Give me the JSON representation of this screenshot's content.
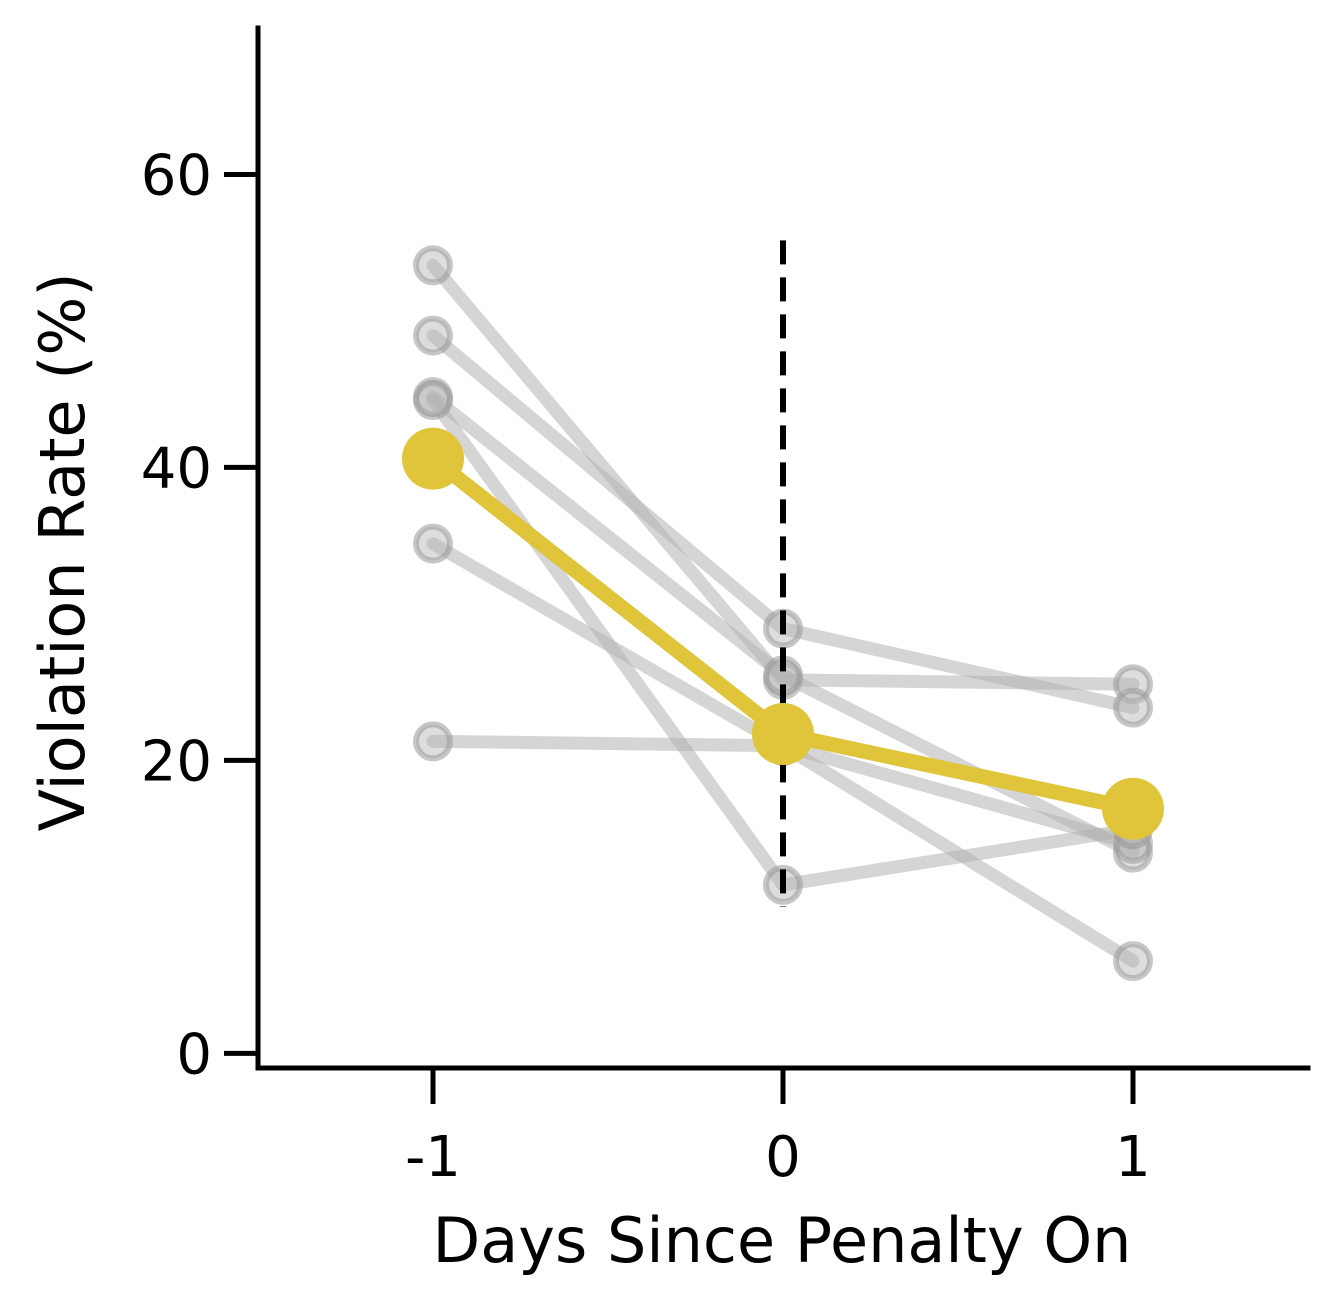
{
  "chart_data": {
    "type": "line",
    "title": "",
    "xlabel": "Days Since Penalty On",
    "ylabel": "Violation Rate (%)",
    "x": [
      -1,
      0,
      1
    ],
    "xlim": [
      -1.5,
      1.5
    ],
    "ylim": [
      -1,
      70
    ],
    "xticks": [
      -1,
      0,
      1
    ],
    "xtick_labels": [
      "-1",
      "0",
      "1"
    ],
    "yticks": [
      0,
      20,
      40,
      60
    ],
    "ytick_labels": [
      "0",
      "20",
      "40",
      "60"
    ],
    "grid": false,
    "legend": "none",
    "vline": {
      "x": 0,
      "style": "dashed",
      "color": "#000000",
      "y_range": [
        10,
        55.5
      ]
    },
    "individual_color": "#b3b3b3",
    "mean_color": "#e0c43a",
    "series": [
      {
        "role": "individual",
        "values": [
          53.8,
          25.5,
          25.2
        ]
      },
      {
        "role": "individual",
        "values": [
          49.0,
          29.0,
          23.6
        ]
      },
      {
        "role": "individual",
        "values": [
          44.8,
          25.8,
          13.7
        ]
      },
      {
        "role": "individual",
        "values": [
          34.8,
          21.0,
          6.3
        ]
      },
      {
        "role": "individual",
        "values": [
          21.3,
          21.0,
          14.3
        ]
      },
      {
        "role": "individual",
        "values": [
          44.6,
          11.5,
          15.3
        ]
      },
      {
        "role": "mean",
        "values": [
          40.6,
          21.8,
          16.7
        ]
      }
    ]
  }
}
